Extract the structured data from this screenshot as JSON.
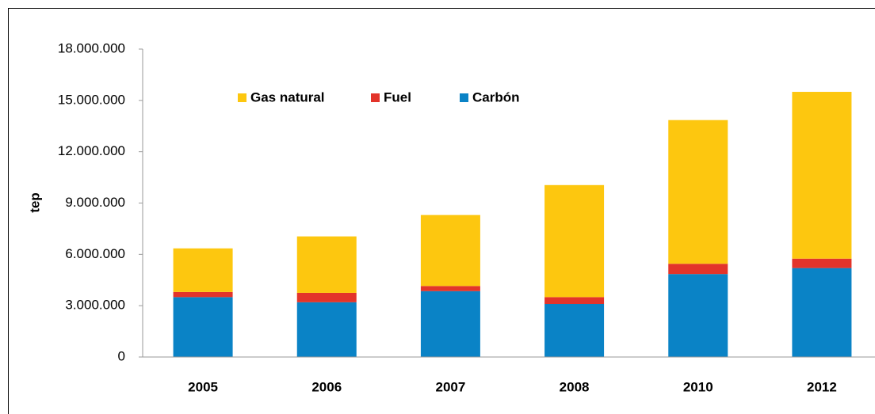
{
  "chart_data": {
    "type": "stacked_bar",
    "y_label": "tep",
    "categories": [
      "2005",
      "2006",
      "2007",
      "2008",
      "2010",
      "2012"
    ],
    "series": [
      {
        "name": "Carbón",
        "color": "#0a83c6",
        "values": [
          3500000,
          3200000,
          3850000,
          3100000,
          4850000,
          5200000
        ]
      },
      {
        "name": "Fuel",
        "color": "#e3342a",
        "values": [
          300000,
          550000,
          300000,
          400000,
          600000,
          550000
        ]
      },
      {
        "name": "Gas natural",
        "color": "#fdc70f",
        "values": [
          2550000,
          3300000,
          4150000,
          6550000,
          8400000,
          9750000
        ]
      }
    ],
    "ylim": [
      0,
      18000000
    ],
    "yticks": [
      0,
      {
        "value": 3000000,
        "label": "3.000.000"
      },
      {
        "value": 6000000,
        "label": "6.000.000"
      },
      {
        "value": 9000000,
        "label": "9.000.000"
      },
      {
        "value": 12000000,
        "label": "12.000.000"
      },
      {
        "value": 15000000,
        "label": "15.000.000"
      },
      {
        "value": 18000000,
        "label": "18.000.000"
      }
    ],
    "legend": "top"
  }
}
